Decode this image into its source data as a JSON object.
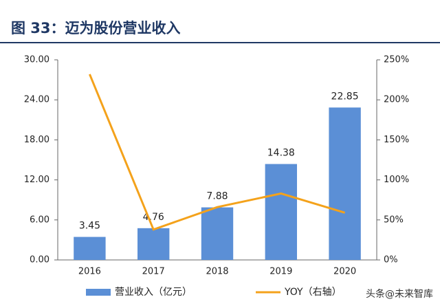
{
  "chart_data": {
    "type": "bar",
    "title": "图 33：迈为股份营业收入",
    "categories": [
      "2016",
      "2017",
      "2018",
      "2019",
      "2020"
    ],
    "series": [
      {
        "name": "营业收入（亿元）",
        "type": "bar",
        "color": "#5b8fd6",
        "values": [
          3.45,
          4.76,
          7.88,
          14.38,
          22.85
        ]
      },
      {
        "name": "YOY（右轴）",
        "type": "line",
        "axis": "y2",
        "color": "#f4a21b",
        "values": [
          232,
          38,
          66,
          83,
          59
        ]
      }
    ],
    "ylim": [
      0,
      30
    ],
    "yticks": [
      {
        "value": 0,
        "label": "0.00"
      },
      {
        "value": 6,
        "label": "6.00"
      },
      {
        "value": 12,
        "label": "12.00"
      },
      {
        "value": 18,
        "label": "18.00"
      },
      {
        "value": 24,
        "label": "24.00"
      },
      {
        "value": 30,
        "label": "30.00"
      }
    ],
    "y2lim": [
      0,
      250
    ],
    "y2ticks": [
      {
        "value": 0,
        "label": "0%"
      },
      {
        "value": 50,
        "label": "50%"
      },
      {
        "value": 100,
        "label": "100%"
      },
      {
        "value": 150,
        "label": "150%"
      },
      {
        "value": 200,
        "label": "200%"
      },
      {
        "value": 250,
        "label": "250%"
      }
    ],
    "watermark": "头条@未来智库"
  }
}
